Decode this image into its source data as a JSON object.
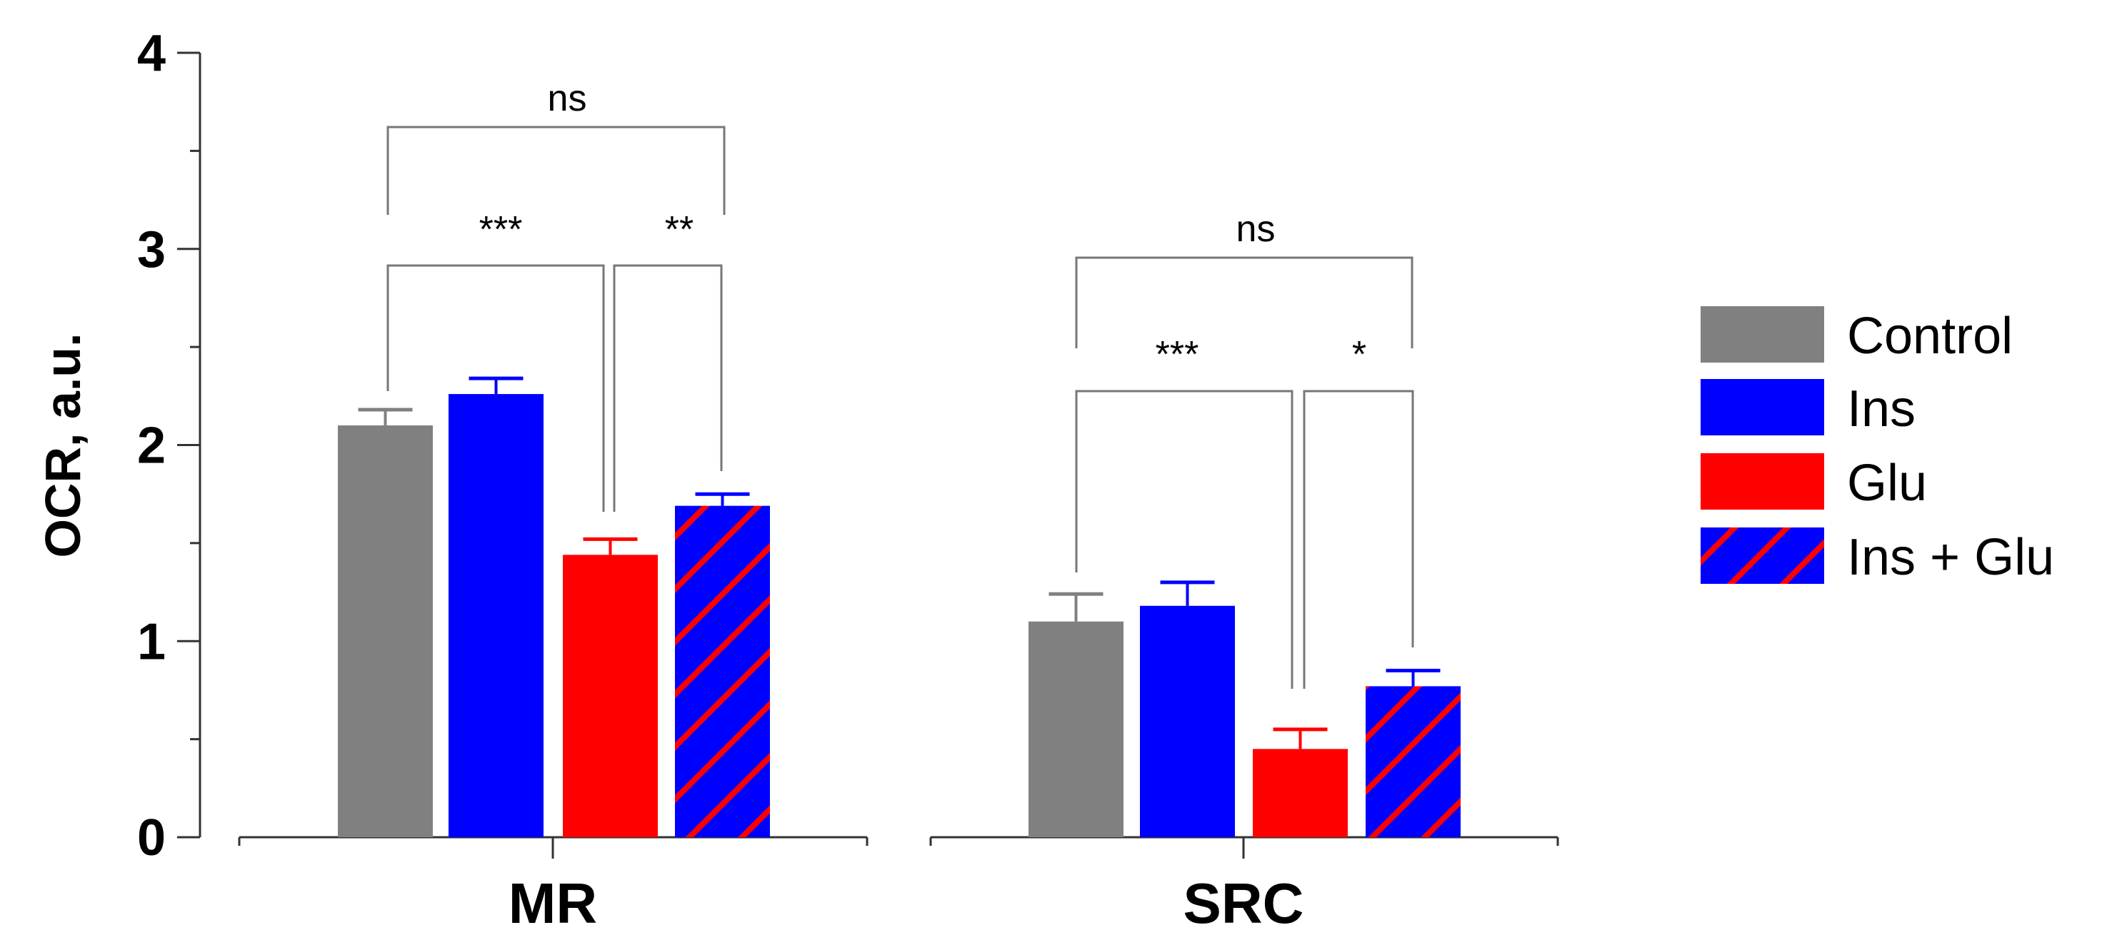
{
  "chart_data": {
    "type": "bar",
    "title": "",
    "xlabel": "",
    "ylabel": "OCR, a.u.",
    "ylim": [
      0,
      4
    ],
    "yticks": [
      "0",
      "1",
      "2",
      "3",
      "4"
    ],
    "minor_tick_step": 0.5,
    "grid": false,
    "categories": [
      "MR",
      "SRC"
    ],
    "series": [
      {
        "name": "Control",
        "color": "#808080",
        "pattern": "solid",
        "values": [
          2.1,
          1.1
        ],
        "errors": [
          0.08,
          0.14
        ]
      },
      {
        "name": "Ins",
        "color": "#0000ff",
        "pattern": "solid",
        "values": [
          2.26,
          1.18
        ],
        "errors": [
          0.08,
          0.12
        ]
      },
      {
        "name": "Glu",
        "color": "#ff0000",
        "pattern": "solid",
        "values": [
          1.44,
          0.45
        ],
        "errors": [
          0.08,
          0.1
        ]
      },
      {
        "name": "Ins + Glu",
        "color": "#0000ff",
        "stripe_color": "#ff0000",
        "pattern": "hatched",
        "values": [
          1.69,
          0.77
        ],
        "errors": [
          0.06,
          0.08
        ]
      }
    ],
    "legend": {
      "placement": "right"
    },
    "annotations": [
      {
        "category": "MR",
        "from": "Control",
        "to": "Ins + Glu",
        "label": "ns"
      },
      {
        "category": "MR",
        "from": "Control",
        "to": "Glu",
        "label": "***"
      },
      {
        "category": "MR",
        "from": "Glu",
        "to": "Ins + Glu",
        "label": "**"
      },
      {
        "category": "SRC",
        "from": "Control",
        "to": "Ins + Glu",
        "label": "ns"
      },
      {
        "category": "SRC",
        "from": "Control",
        "to": "Glu",
        "label": "***"
      },
      {
        "category": "SRC",
        "from": "Glu",
        "to": "Ins + Glu",
        "label": "*"
      }
    ]
  }
}
